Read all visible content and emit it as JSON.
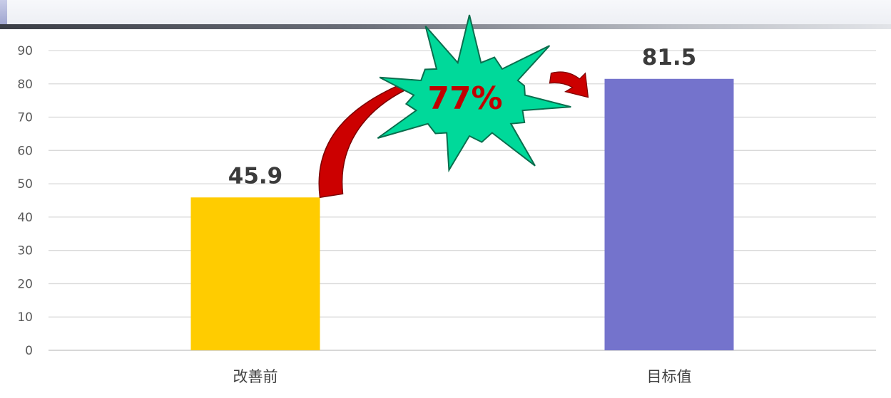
{
  "chart_data": {
    "type": "bar",
    "categories": [
      "改善前",
      "目标值"
    ],
    "values": [
      45.9,
      81.5
    ],
    "data_labels": [
      "45.9",
      "81.5"
    ],
    "colors": [
      "#ffcc00",
      "#7473cc"
    ],
    "ylim": [
      0,
      90
    ],
    "y_ticks": [
      0,
      10,
      20,
      30,
      40,
      50,
      60,
      70,
      80,
      90
    ],
    "grid": true,
    "title": "",
    "xlabel": "",
    "ylabel": "",
    "annotations": [
      {
        "text": "77%",
        "shape": "starburst",
        "fill": "#00d99a",
        "text_color": "#c00000"
      }
    ],
    "arrow_color": "#cc0000"
  }
}
